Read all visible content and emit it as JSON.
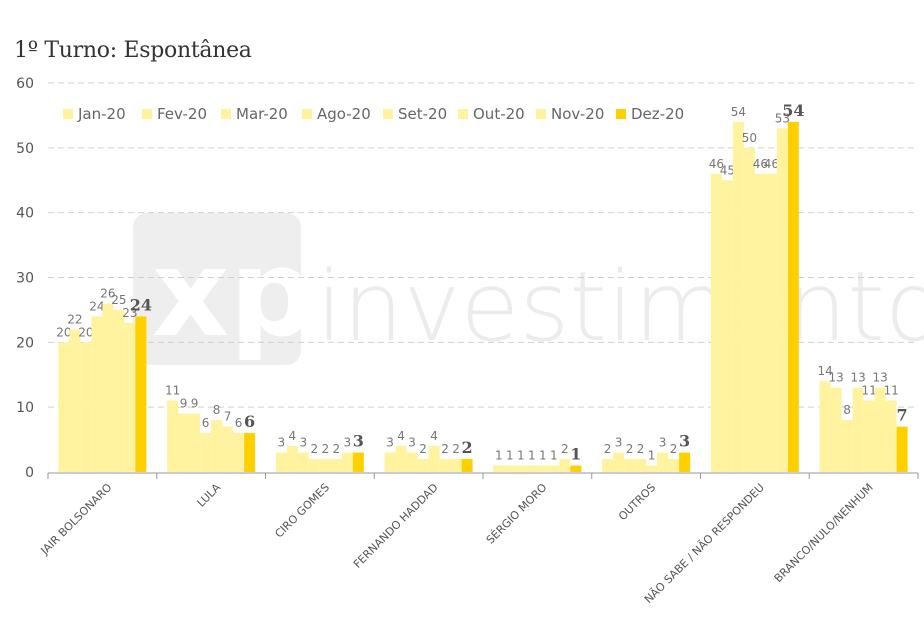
{
  "chart_data": {
    "type": "bar",
    "title": "1º Turno: Espontânea",
    "ylim": [
      0,
      60
    ],
    "yticks": [
      "0",
      "10",
      "20",
      "30",
      "40",
      "50",
      "60"
    ],
    "grid": true,
    "legend_position": "top-left",
    "categories": [
      "JAIR BOLSONARO",
      "LULA",
      "CIRO GOMES",
      "FERNANDO HADDAD",
      "SÉRGIO MORO",
      "OUTROS",
      "NÃO SABE / NÃO RESPONDEU",
      "BRANCO/NULO/NENHUM"
    ],
    "series": [
      {
        "name": "Jan-20",
        "color": "#fff39f",
        "values": [
          20,
          11,
          3,
          3,
          1,
          2,
          46,
          14
        ]
      },
      {
        "name": "Fev-20",
        "color": "#fff39f",
        "values": [
          22,
          9,
          4,
          4,
          1,
          3,
          45,
          13
        ]
      },
      {
        "name": "Mar-20",
        "color": "#fff39f",
        "values": [
          20,
          9,
          3,
          3,
          1,
          2,
          54,
          8
        ]
      },
      {
        "name": "Ago-20",
        "color": "#fff39f",
        "values": [
          24,
          6,
          2,
          2,
          1,
          2,
          50,
          13
        ]
      },
      {
        "name": "Set-20",
        "color": "#fff39f",
        "values": [
          26,
          8,
          2,
          4,
          1,
          1,
          46,
          11
        ]
      },
      {
        "name": "Out-20",
        "color": "#fff39f",
        "values": [
          25,
          7,
          2,
          2,
          1,
          3,
          46,
          13
        ]
      },
      {
        "name": "Nov-20",
        "color": "#fff39f",
        "values": [
          23,
          6,
          3,
          2,
          2,
          2,
          53,
          11
        ]
      },
      {
        "name": "Dez-20",
        "color": "#ffd000",
        "values": [
          24,
          6,
          3,
          2,
          1,
          3,
          54,
          7
        ]
      }
    ]
  },
  "watermark": {
    "brand": "xp",
    "text": "investimentos"
  }
}
